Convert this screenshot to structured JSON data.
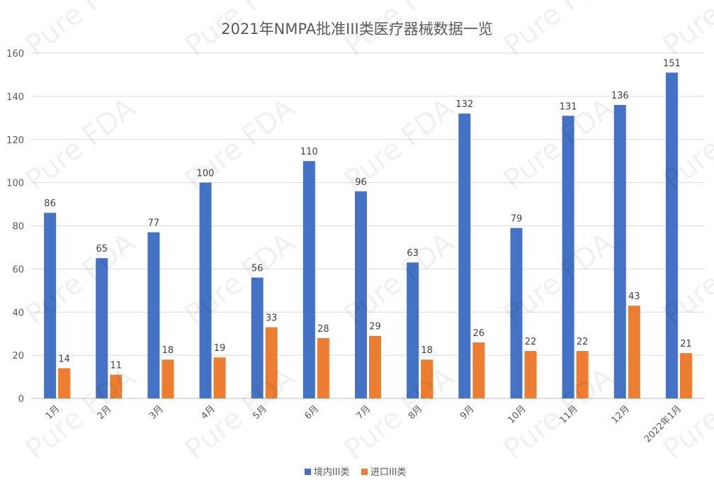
{
  "chart_data": {
    "type": "bar",
    "title": "2021年NMPA批准III类医疗器械数据一览",
    "xlabel": "",
    "ylabel": "",
    "categories": [
      "1月",
      "2月",
      "3月",
      "4月",
      "5月",
      "6月",
      "7月",
      "8月",
      "9月",
      "10月",
      "11月",
      "12月",
      "2022年1月"
    ],
    "series": [
      {
        "name": "境内III类",
        "color": "#4472C4",
        "values": [
          86,
          65,
          77,
          100,
          56,
          110,
          96,
          63,
          132,
          79,
          131,
          136,
          151
        ]
      },
      {
        "name": "进口III类",
        "color": "#ED7D31",
        "values": [
          14,
          11,
          18,
          19,
          33,
          28,
          29,
          18,
          26,
          22,
          22,
          43,
          21
        ]
      }
    ],
    "ylim": [
      0,
      160
    ],
    "yticks": [
      0,
      20,
      40,
      60,
      80,
      100,
      120,
      140,
      160
    ],
    "grid": true,
    "legend": "bottom",
    "data_labels": true
  },
  "watermark": {
    "text": "Pure FDA"
  }
}
